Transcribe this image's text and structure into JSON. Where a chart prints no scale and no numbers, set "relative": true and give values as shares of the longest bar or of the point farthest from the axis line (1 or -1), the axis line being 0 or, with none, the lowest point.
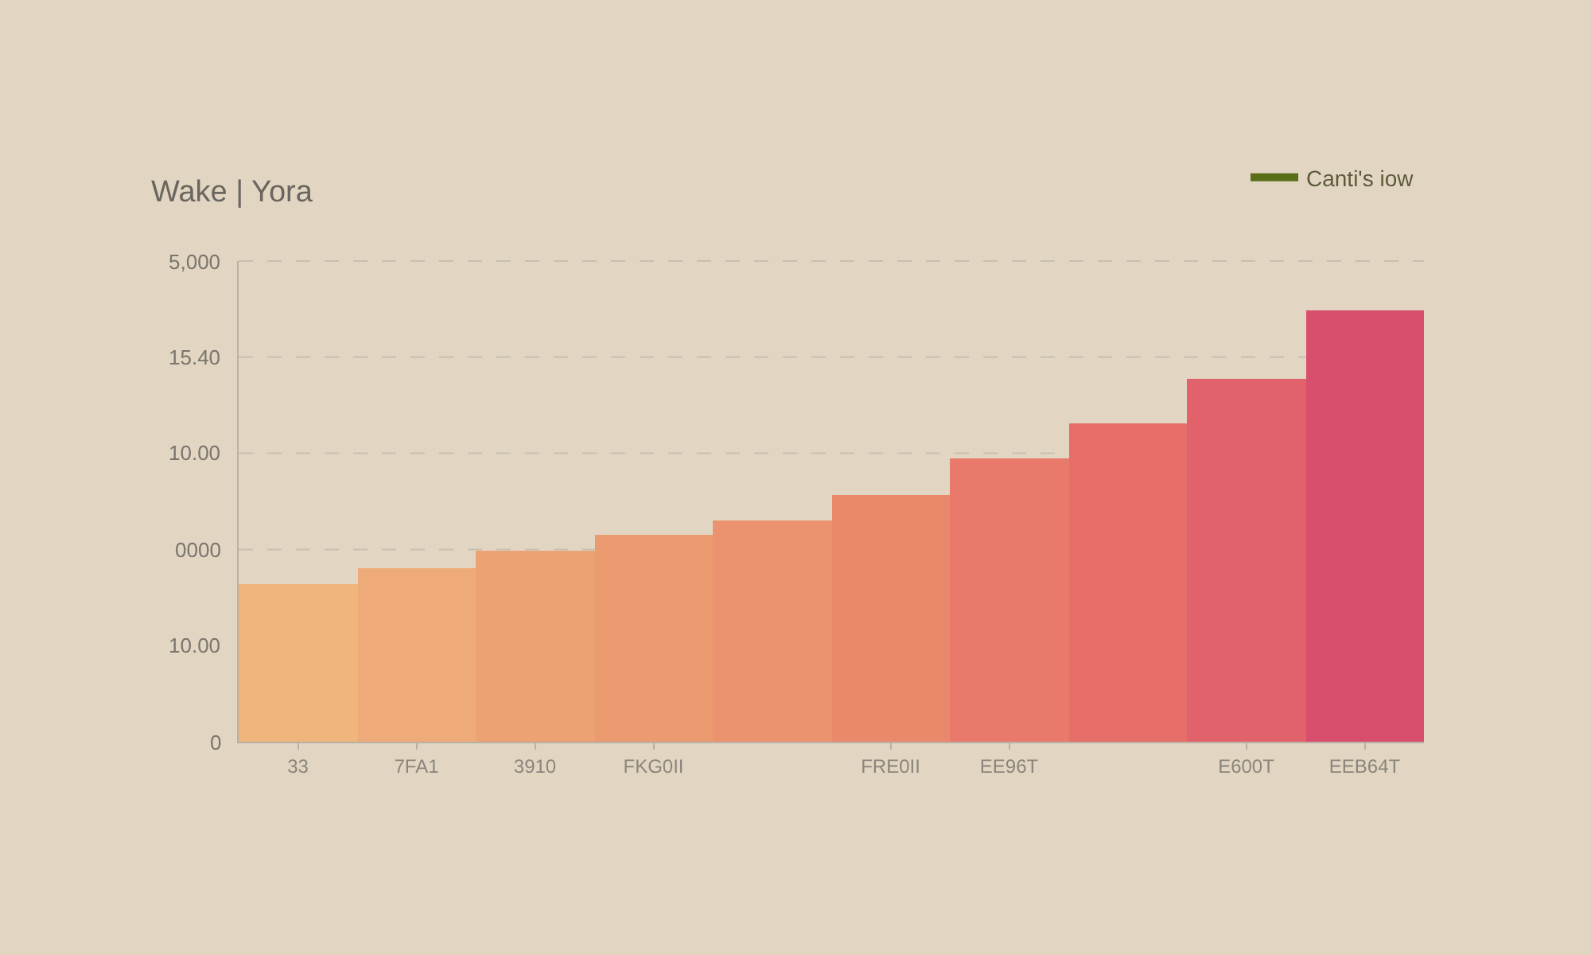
{
  "chart_data": {
    "type": "bar",
    "title": "Wake | Yora",
    "relative": true,
    "categories": [
      "33",
      "7FA1",
      "3910",
      "FKG0II",
      null,
      "FRE0II",
      "EE96T",
      null,
      "E600T",
      "EEB64T"
    ],
    "series": [
      {
        "name": "Canti's iow",
        "color": "#5a6e1a",
        "colors": [
          "#f0b57a",
          "#eeaa78",
          "#eda273",
          "#ec9a70",
          "#eb926e",
          "#ea886c",
          "#e9796a",
          "#e66e69",
          "#e2626b",
          "#d84f6e"
        ],
        "values": [
          0.366,
          0.402,
          0.442,
          0.48,
          0.513,
          0.571,
          0.658,
          0.739,
          0.842,
          1
        ]
      }
    ],
    "annotations": [
      "0",
      "10.00",
      "0000",
      "10.00",
      "15.40",
      "5,000"
    ],
    "grid": "y",
    "legend": "top right"
  }
}
